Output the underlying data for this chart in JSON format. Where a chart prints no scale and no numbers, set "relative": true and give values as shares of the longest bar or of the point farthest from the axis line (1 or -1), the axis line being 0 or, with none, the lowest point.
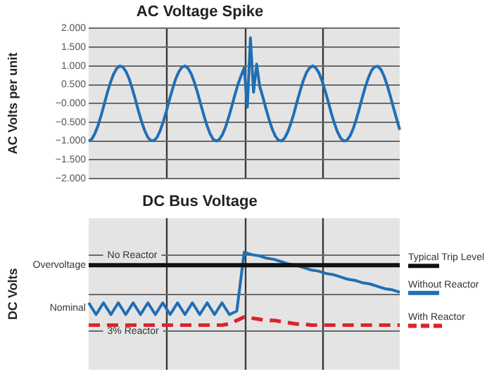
{
  "chart_data": [
    {
      "type": "line",
      "title": "AC Voltage Spike",
      "ylabel": "AC Volts per unit",
      "categories": [
        null,
        null,
        null,
        null,
        null,
        null,
        null,
        null,
        null,
        null,
        null,
        null,
        null,
        null,
        null,
        null,
        null,
        null,
        null,
        null,
        null,
        null,
        null,
        null,
        null,
        null,
        null,
        null,
        null,
        null,
        null,
        null,
        null,
        null,
        null,
        null,
        null,
        null,
        null,
        null,
        null,
        null,
        null,
        null,
        null,
        null,
        null,
        null,
        null,
        null,
        null,
        null,
        null,
        null,
        null,
        null,
        null,
        null,
        null,
        null,
        null,
        null,
        null,
        null,
        null,
        null,
        null,
        null,
        null,
        null,
        null,
        null,
        null,
        null,
        null,
        null,
        null,
        null,
        null,
        null,
        null,
        null,
        null,
        null,
        null,
        null,
        null,
        null,
        null,
        null,
        null,
        null,
        null,
        null,
        null,
        null,
        null,
        null,
        null,
        null,
        null
      ],
      "ylim": [
        -2,
        2
      ],
      "yticks": [
        {
          "value": -2,
          "label": "−2.000"
        },
        {
          "value": -1.5,
          "label": "−1.500"
        },
        {
          "value": -1,
          "label": "−1.000"
        },
        {
          "value": -0.5,
          "label": "−0.500"
        },
        {
          "value": 0,
          "label": "−0.000"
        },
        {
          "value": 0.5,
          "label": "0.500"
        },
        {
          "value": 1,
          "label": "1.000"
        },
        {
          "value": 1.5,
          "label": "1.500"
        },
        {
          "value": 2,
          "label": "2.000"
        }
      ],
      "tick_labels": "y",
      "grid": true,
      "marker": "none",
      "series": [
        {
          "color": "#1f6fb5",
          "values": [
            -1.0,
            -0.95,
            -0.8,
            -0.59,
            -0.32,
            -0.02,
            0.29,
            0.56,
            0.78,
            0.93,
            1.0,
            0.97,
            0.85,
            0.66,
            0.4,
            0.11,
            -0.2,
            -0.48,
            -0.72,
            -0.9,
            -0.99,
            -0.99,
            -0.9,
            -0.72,
            -0.48,
            -0.2,
            0.11,
            0.4,
            0.66,
            0.85,
            0.97,
            1.0,
            0.93,
            0.78,
            0.56,
            0.29,
            -0.01,
            -0.31,
            -0.58,
            -0.8,
            -0.95,
            -1.0,
            -0.96,
            -0.83,
            -0.63,
            -0.37,
            -0.08,
            0.23,
            0.51,
            0.74,
            0.95,
            -0.1,
            1.75,
            0.3,
            1.05,
            0.45,
            0.17,
            -0.14,
            -0.43,
            -0.68,
            -0.87,
            -0.98,
            -1.0,
            -0.92,
            -0.76,
            -0.53,
            -0.26,
            0.05,
            0.34,
            0.61,
            0.82,
            0.95,
            1.0,
            0.95,
            0.82,
            0.61,
            0.34,
            0.05,
            -0.26,
            -0.53,
            -0.76,
            -0.92,
            -1.0,
            -0.98,
            -0.87,
            -0.68,
            -0.43,
            -0.14,
            0.17,
            0.46,
            0.7,
            0.89,
            0.98,
            0.99,
            0.9,
            0.72,
            0.48,
            0.19,
            -0.12,
            -0.41,
            -0.7
          ]
        }
      ]
    },
    {
      "type": "line",
      "title": "DC Bus Voltage",
      "ylabel": "DC Volts",
      "relative": true,
      "categories": [
        null,
        null,
        null,
        null,
        null,
        null,
        null,
        null,
        null,
        null,
        null,
        null,
        null,
        null,
        null,
        null,
        null,
        null,
        null,
        null,
        null,
        null,
        null,
        null,
        null,
        null,
        null,
        null,
        null,
        null,
        null,
        null,
        null,
        null,
        null,
        null,
        null,
        null,
        null,
        null,
        null,
        null,
        null
      ],
      "tick_labels": false,
      "grid": "x",
      "legend": "right",
      "marker": "none",
      "annotations": [
        "Overvoltage",
        "Nominal"
      ],
      "ref_lines": [
        {
          "axis": "y",
          "value": 0.98,
          "label": "No Reactor",
          "color": "#6a6a6a"
        },
        {
          "axis": "y",
          "value": 0.65,
          "color": "#6a6a6a"
        },
        {
          "axis": "y",
          "value": 0.33,
          "label": "3% Reactor",
          "color": "#6a6a6a"
        }
      ],
      "series": [
        {
          "name": "Typical Trip Level",
          "color": "#111111",
          "line_style": "solid",
          "values": [
            0.89,
            0.89,
            0.89,
            0.89,
            0.89,
            0.89,
            0.89,
            0.89,
            0.89,
            0.89,
            0.89,
            0.89,
            0.89,
            0.89,
            0.89,
            0.89,
            0.89,
            0.89,
            0.89,
            0.89,
            0.89,
            0.89,
            0.89,
            0.89,
            0.89,
            0.89,
            0.89,
            0.89,
            0.89,
            0.89,
            0.89,
            0.89,
            0.89,
            0.89,
            0.89,
            0.89,
            0.89,
            0.89,
            0.89,
            0.89,
            0.89,
            0.89,
            0.89
          ]
        },
        {
          "name": "Without Reactor",
          "color": "#1f6fb5",
          "line_style": "solid",
          "values": [
            0.57,
            0.47,
            0.57,
            0.47,
            0.57,
            0.47,
            0.57,
            0.47,
            0.57,
            0.47,
            0.57,
            0.47,
            0.57,
            0.47,
            0.57,
            0.47,
            0.57,
            0.47,
            0.57,
            0.47,
            0.5,
            1.0,
            0.98,
            0.97,
            0.95,
            0.94,
            0.92,
            0.9,
            0.89,
            0.87,
            0.85,
            0.84,
            0.82,
            0.81,
            0.79,
            0.77,
            0.76,
            0.74,
            0.73,
            0.71,
            0.69,
            0.68,
            0.66
          ]
        },
        {
          "name": "With Reactor",
          "color": "#d7262b",
          "line_style": "dashed",
          "values": [
            0.38,
            0.38,
            0.38,
            0.38,
            0.38,
            0.38,
            0.38,
            0.38,
            0.38,
            0.38,
            0.38,
            0.38,
            0.38,
            0.38,
            0.38,
            0.38,
            0.38,
            0.38,
            0.38,
            0.39,
            0.42,
            0.45,
            0.44,
            0.43,
            0.42,
            0.42,
            0.41,
            0.4,
            0.39,
            0.39,
            0.38,
            0.38,
            0.38,
            0.38,
            0.38,
            0.38,
            0.38,
            0.38,
            0.38,
            0.38,
            0.38,
            0.38,
            0.38
          ]
        }
      ]
    }
  ]
}
